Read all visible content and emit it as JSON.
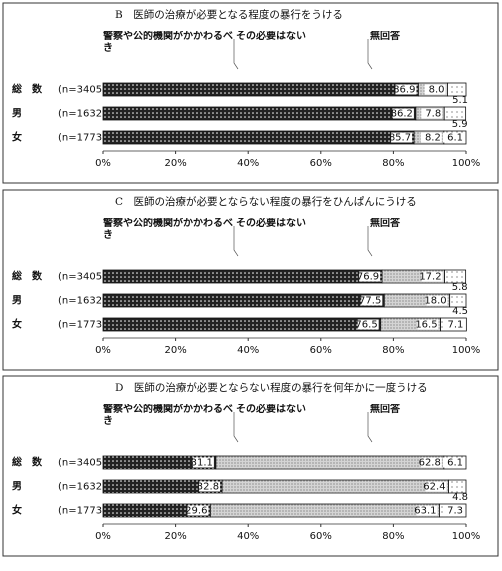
{
  "chart_data": [
    {
      "type": "stacked-bar-horizontal",
      "title": "B　医師の治療が必要となる程度の暴行をうける",
      "categories": [
        "総　数",
        "男",
        "女"
      ],
      "sample_sizes": [
        "(n=3405)",
        "(n=1632)",
        "(n=1773)"
      ],
      "series": [
        {
          "name": "警察や公的機関がかかわるべき",
          "color": "#222222",
          "values": [
            86.9,
            86.2,
            85.7
          ],
          "value_labels": [
            "86.9",
            "86.2",
            "85.7"
          ]
        },
        {
          "name": "その必要はない",
          "color": "#d4d4d4",
          "values": [
            8.0,
            7.8,
            8.2
          ],
          "value_labels": [
            "8.0",
            "7.8",
            "8.2"
          ]
        },
        {
          "name": "無回答",
          "color": "#ffffff",
          "values": [
            5.1,
            5.9,
            6.1
          ],
          "value_labels": [
            "5.1",
            "5.9",
            "6.1"
          ]
        }
      ],
      "xlim": [
        0,
        100
      ],
      "xticks": [
        {
          "value": 0,
          "label": "0%"
        },
        {
          "value": 20,
          "label": "20%"
        },
        {
          "value": 40,
          "label": "40%"
        },
        {
          "value": 60,
          "label": "60%"
        },
        {
          "value": 80,
          "label": "80%"
        },
        {
          "value": 100,
          "label": "100%"
        }
      ]
    },
    {
      "type": "stacked-bar-horizontal",
      "title": "C　医師の治療が必要とならない程度の暴行をひんぱんにうける",
      "categories": [
        "総　数",
        "男",
        "女"
      ],
      "sample_sizes": [
        "(n=3405)",
        "(n=1632)",
        "(n=1773)"
      ],
      "series": [
        {
          "name": "警察や公的機関がかかわるべき",
          "color": "#222222",
          "values": [
            76.9,
            77.5,
            76.5
          ],
          "value_labels": [
            "76.9",
            "77.5",
            "76.5"
          ]
        },
        {
          "name": "その必要はない",
          "color": "#d4d4d4",
          "values": [
            17.2,
            18.0,
            16.5
          ],
          "value_labels": [
            "17.2",
            "18.0",
            "16.5"
          ]
        },
        {
          "name": "無回答",
          "color": "#ffffff",
          "values": [
            5.8,
            4.5,
            7.1
          ],
          "value_labels": [
            "5.8",
            "4.5",
            "7.1"
          ]
        }
      ],
      "xlim": [
        0,
        100
      ],
      "xticks": [
        {
          "value": 0,
          "label": "0%"
        },
        {
          "value": 20,
          "label": "20%"
        },
        {
          "value": 40,
          "label": "40%"
        },
        {
          "value": 60,
          "label": "60%"
        },
        {
          "value": 80,
          "label": "80%"
        },
        {
          "value": 100,
          "label": "100%"
        }
      ]
    },
    {
      "type": "stacked-bar-horizontal",
      "title": "D　医師の治療が必要とならない程度の暴行を何年かに一度うける",
      "categories": [
        "総　数",
        "男",
        "女"
      ],
      "sample_sizes": [
        "(n=3405)",
        "(n=1632)",
        "(n=1773)"
      ],
      "series": [
        {
          "name": "警察や公的機関がかかわるべき",
          "color": "#222222",
          "values": [
            31.1,
            32.8,
            29.6
          ],
          "value_labels": [
            "31.1",
            "32.8",
            "29.6"
          ]
        },
        {
          "name": "その必要はない",
          "color": "#d4d4d4",
          "values": [
            62.8,
            62.4,
            63.1
          ],
          "value_labels": [
            "62.8",
            "62.4",
            "63.1"
          ]
        },
        {
          "name": "無回答",
          "color": "#ffffff",
          "values": [
            6.1,
            4.8,
            7.3
          ],
          "value_labels": [
            "6.1",
            "4.8",
            "7.3"
          ]
        }
      ],
      "xlim": [
        0,
        100
      ],
      "xticks": [
        {
          "value": 0,
          "label": "0%"
        },
        {
          "value": 20,
          "label": "20%"
        },
        {
          "value": 40,
          "label": "40%"
        },
        {
          "value": 60,
          "label": "60%"
        },
        {
          "value": 80,
          "label": "80%"
        },
        {
          "value": 100,
          "label": "100%"
        }
      ]
    }
  ]
}
